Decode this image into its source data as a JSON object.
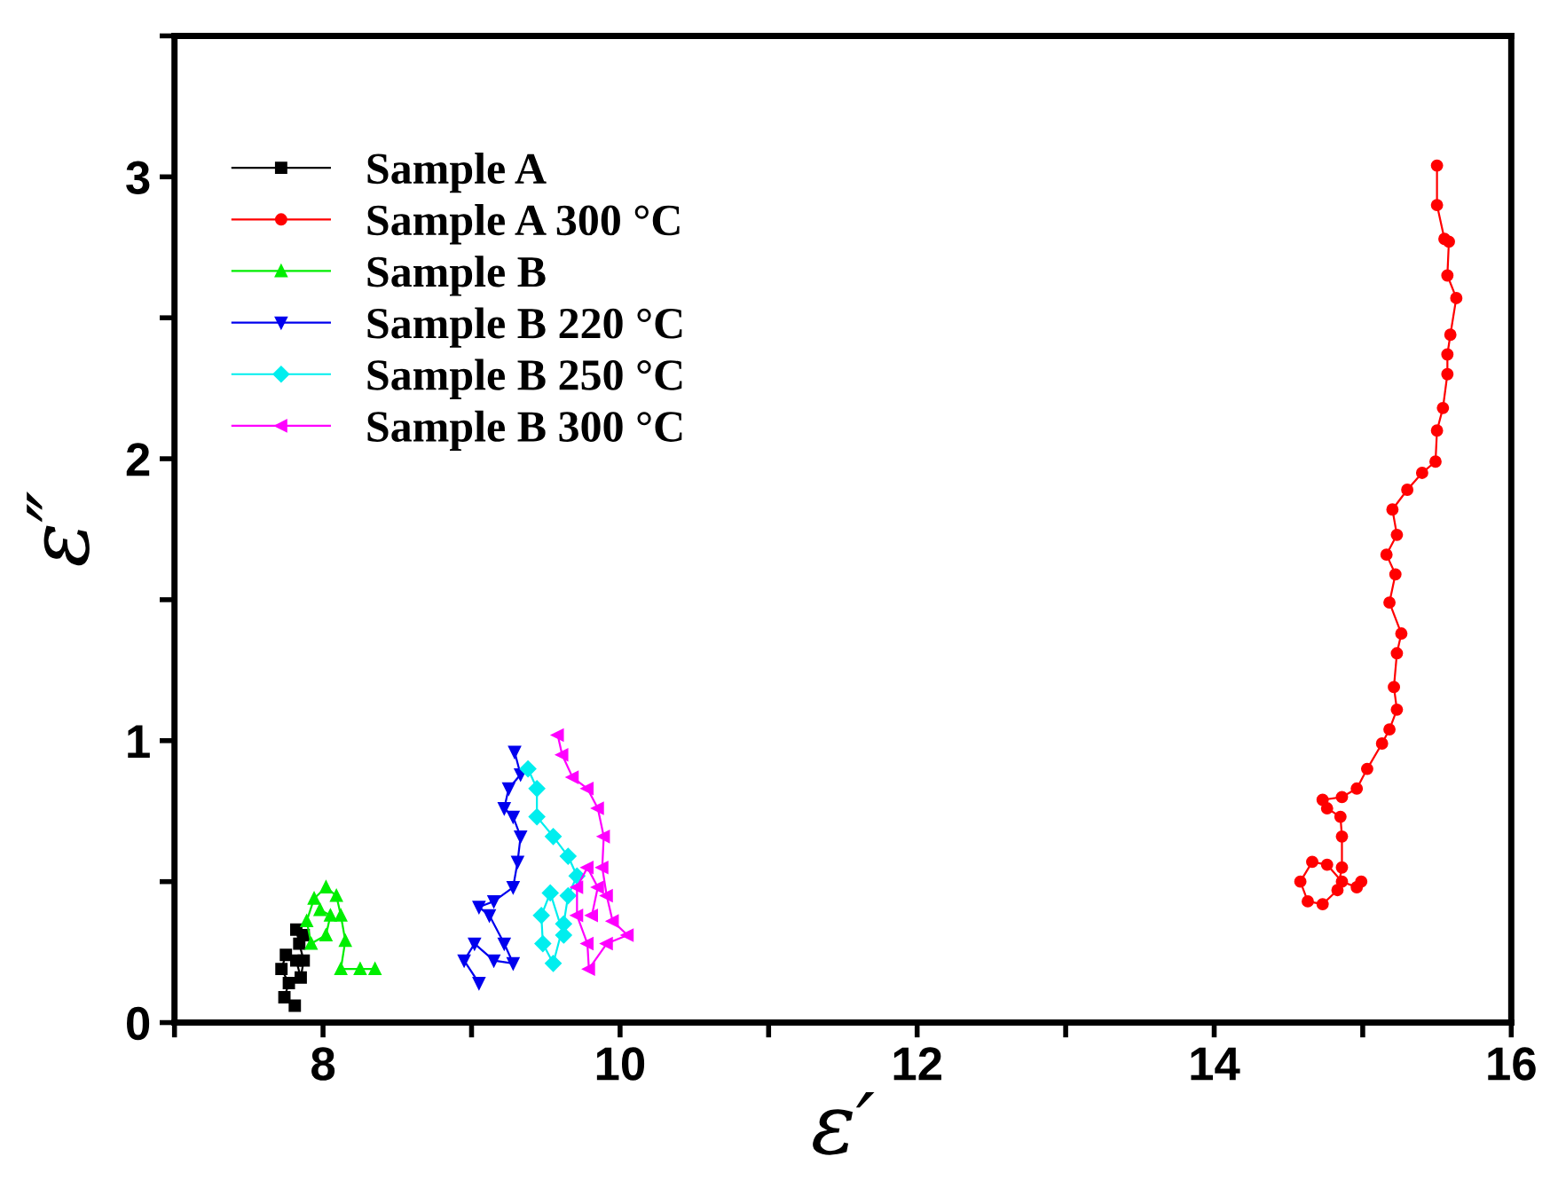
{
  "chart_data": {
    "type": "line",
    "xlabel": "ε′",
    "ylabel": "ε″",
    "xlim": [
      7,
      16
    ],
    "ylim": [
      0,
      3.5
    ],
    "xticks": [
      {
        "value": 7,
        "label": null
      },
      8,
      {
        "value": 9,
        "label": null
      },
      10,
      {
        "value": 11,
        "label": null
      },
      12,
      {
        "value": 13,
        "label": null
      },
      14,
      {
        "value": 15,
        "label": null
      },
      16
    ],
    "yticks": [
      0,
      {
        "value": 0.5,
        "label": null
      },
      1,
      {
        "value": 1.5,
        "label": null
      },
      2,
      {
        "value": 2.5,
        "label": null
      },
      3,
      {
        "value": 3.5,
        "label": null
      }
    ],
    "grid": false,
    "legend": "top left",
    "line_style": "solid",
    "series": [
      {
        "name": "Sample A",
        "color": "#000000",
        "marker": "square",
        "x": [
          7.81,
          7.74,
          7.77,
          7.72,
          7.75,
          7.82,
          7.85,
          7.87,
          7.84,
          7.82,
          7.87
        ],
        "values": [
          0.06,
          0.09,
          0.14,
          0.19,
          0.24,
          0.22,
          0.16,
          0.22,
          0.28,
          0.33,
          0.31
        ]
      },
      {
        "name": "Sample A 300 °C",
        "color": "#ff0000",
        "marker": "circle",
        "x": [
          15.5,
          15.5,
          15.55,
          15.58,
          15.57,
          15.63,
          15.59,
          15.57,
          15.57,
          15.54,
          15.5,
          15.49,
          15.4,
          15.3,
          15.2,
          15.23,
          15.16,
          15.22,
          15.18,
          15.26,
          15.23,
          15.21,
          15.23,
          15.18,
          15.13,
          15.03,
          14.96,
          14.86,
          14.73,
          14.76,
          14.85,
          14.86,
          14.86,
          14.83,
          14.73,
          14.63,
          14.58,
          14.66,
          14.76,
          14.86,
          14.96,
          14.99
        ],
        "values": [
          3.04,
          2.9,
          2.78,
          2.77,
          2.65,
          2.57,
          2.44,
          2.37,
          2.3,
          2.18,
          2.1,
          1.99,
          1.95,
          1.89,
          1.82,
          1.73,
          1.66,
          1.59,
          1.49,
          1.38,
          1.31,
          1.19,
          1.11,
          1.04,
          0.99,
          0.9,
          0.83,
          0.8,
          0.79,
          0.76,
          0.73,
          0.66,
          0.55,
          0.47,
          0.42,
          0.43,
          0.5,
          0.57,
          0.56,
          0.5,
          0.48,
          0.5
        ]
      },
      {
        "name": "Sample B",
        "color": "#00ee00",
        "marker": "triangle",
        "x": [
          8.35,
          8.25,
          8.12,
          8.15,
          8.12,
          8.09,
          8.02,
          7.94,
          7.89,
          7.92,
          8.02,
          8.05,
          7.98
        ],
        "values": [
          0.19,
          0.19,
          0.19,
          0.29,
          0.38,
          0.45,
          0.48,
          0.44,
          0.36,
          0.28,
          0.31,
          0.38,
          0.4
        ]
      },
      {
        "name": "Sample B 220 °C",
        "color": "#0000ee",
        "marker": "triangle_down",
        "x": [
          9.05,
          8.95,
          9.02,
          9.15,
          9.28,
          9.22,
          9.12,
          9.05,
          9.15,
          9.28,
          9.31,
          9.33,
          9.28,
          9.22,
          9.25,
          9.33,
          9.29
        ],
        "values": [
          0.14,
          0.22,
          0.28,
          0.22,
          0.21,
          0.28,
          0.38,
          0.41,
          0.43,
          0.48,
          0.57,
          0.66,
          0.73,
          0.76,
          0.83,
          0.88,
          0.96
        ]
      },
      {
        "name": "Sample B 250 °C",
        "color": "#00eeee",
        "marker": "diamond",
        "x": [
          9.38,
          9.44,
          9.44,
          9.55,
          9.65,
          9.71,
          9.65,
          9.62,
          9.55,
          9.48,
          9.47,
          9.53,
          9.62
        ],
        "values": [
          0.9,
          0.83,
          0.73,
          0.66,
          0.59,
          0.52,
          0.45,
          0.35,
          0.21,
          0.28,
          0.38,
          0.46,
          0.31
        ]
      },
      {
        "name": "Sample B 300 °C",
        "color": "#ff00ff",
        "marker": "triangle_left",
        "x": [
          9.58,
          9.61,
          9.68,
          9.78,
          9.85,
          9.89,
          9.88,
          9.91,
          9.95,
          10.05,
          9.91,
          9.79,
          9.78,
          9.71,
          9.71,
          9.78,
          9.85,
          9.81
        ],
        "values": [
          1.02,
          0.95,
          0.87,
          0.83,
          0.76,
          0.66,
          0.55,
          0.45,
          0.36,
          0.31,
          0.28,
          0.19,
          0.28,
          0.38,
          0.48,
          0.55,
          0.48,
          0.38
        ]
      }
    ]
  }
}
